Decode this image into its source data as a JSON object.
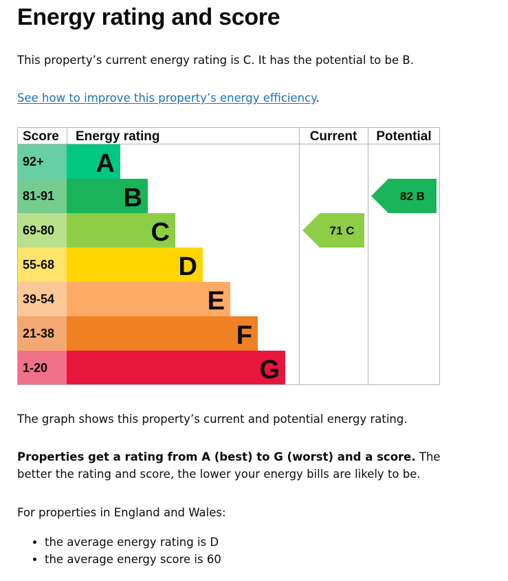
{
  "page": {
    "title": "Energy rating and score",
    "summary": "This property’s current energy rating is C. It has the potential to be B.",
    "improve_link": "See how to improve this property’s energy efficiency",
    "improve_link_suffix": ".",
    "graph_note": "The graph shows this property’s current and potential energy rating.",
    "rating_bold": "Properties get a rating from A (best) to G (worst) and a score.",
    "rating_rest": " The better the rating and score, the lower your energy bills are likely to be.",
    "england_wales": "For properties in England and Wales:",
    "averages": [
      "the average energy rating is D",
      "the average energy score is 60"
    ]
  },
  "chart_data": {
    "type": "table",
    "headers": {
      "score": "Score",
      "rating": "Energy rating",
      "current": "Current",
      "potential": "Potential"
    },
    "bands": [
      {
        "letter": "A",
        "range": "92+",
        "color": "#00c781",
        "score_bg": "#67cfa3",
        "min": 92,
        "max": 100
      },
      {
        "letter": "B",
        "range": "81-91",
        "color": "#19b459",
        "score_bg": "#75cc8e",
        "min": 81,
        "max": 91
      },
      {
        "letter": "C",
        "range": "69-80",
        "color": "#8dce46",
        "score_bg": "#b9e08a",
        "min": 69,
        "max": 80
      },
      {
        "letter": "D",
        "range": "55-68",
        "color": "#ffd500",
        "score_bg": "#ffe36a",
        "min": 55,
        "max": 68
      },
      {
        "letter": "E",
        "range": "39-54",
        "color": "#fcaa65",
        "score_bg": "#fdc897",
        "min": 39,
        "max": 54
      },
      {
        "letter": "F",
        "range": "21-38",
        "color": "#ef8023",
        "score_bg": "#f4a972",
        "min": 21,
        "max": 38
      },
      {
        "letter": "G",
        "range": "1-20",
        "color": "#e9153b",
        "score_bg": "#f1708a",
        "min": 1,
        "max": 20
      }
    ],
    "current": {
      "score": 71,
      "letter": "C",
      "label": "71  C"
    },
    "potential": {
      "score": 82,
      "letter": "B",
      "label": "82  B"
    }
  }
}
